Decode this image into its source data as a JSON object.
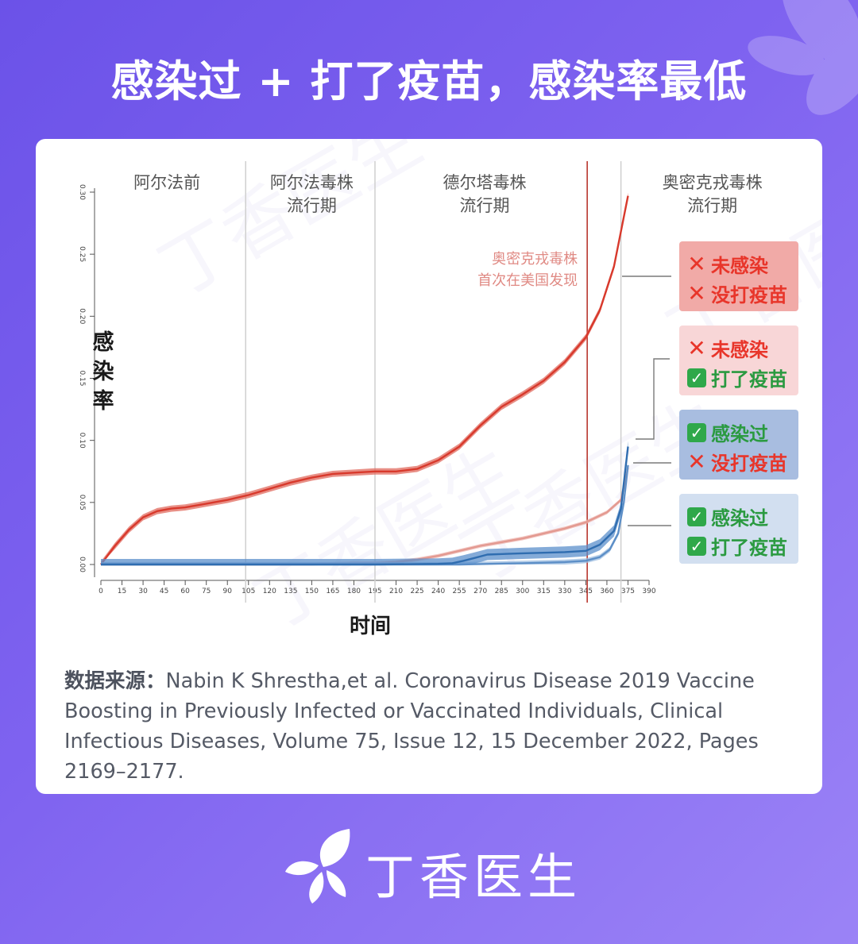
{
  "page_title": "感染过 + 打了疫苗，感染率最低",
  "chart_data": {
    "type": "line",
    "ylabel": "感染率",
    "xlabel": "时间",
    "xlim": [
      0,
      390
    ],
    "ylim": [
      0,
      0.3
    ],
    "x_ticks": [
      0,
      15,
      30,
      45,
      60,
      75,
      90,
      105,
      120,
      135,
      150,
      165,
      180,
      195,
      210,
      225,
      240,
      255,
      270,
      285,
      300,
      315,
      330,
      345,
      360,
      375,
      390
    ],
    "y_ticks": [
      {
        "value": 0.0,
        "label": "0.00"
      },
      {
        "value": 0.05,
        "label": "0.05"
      },
      {
        "value": 0.1,
        "label": "0.10"
      },
      {
        "value": 0.15,
        "label": "0.15"
      },
      {
        "value": 0.2,
        "label": "0.20"
      },
      {
        "value": 0.25,
        "label": "0.25"
      },
      {
        "value": 0.3,
        "label": "0.30"
      }
    ],
    "periods": [
      {
        "lines": [
          "阿尔法前"
        ],
        "center": 47
      },
      {
        "lines": [
          "阿尔法毒株",
          "流行期"
        ],
        "center": 150
      },
      {
        "lines": [
          "德尔塔毒株",
          "流行期"
        ],
        "center": 273
      },
      {
        "lines": [
          "奥密克戎毒株",
          "流行期"
        ],
        "center": 435
      }
    ],
    "period_boundaries": [
      103,
      195,
      370
    ],
    "marker_line": {
      "x": 346,
      "label_lines": [
        "奥密克戎毒株",
        "首次在美国发现"
      ],
      "color": "#b9372e"
    },
    "series": [
      {
        "key": "uninfected_unvaccinated",
        "color": "#d8392c",
        "band_color": "#e06a5e",
        "band": 0.0025,
        "x": [
          0,
          10,
          20,
          30,
          40,
          50,
          60,
          75,
          90,
          105,
          120,
          135,
          150,
          165,
          180,
          195,
          210,
          225,
          240,
          255,
          270,
          285,
          300,
          315,
          330,
          345,
          355,
          365,
          375
        ],
        "values": [
          0.0,
          0.015,
          0.028,
          0.038,
          0.043,
          0.045,
          0.046,
          0.049,
          0.052,
          0.056,
          0.061,
          0.066,
          0.07,
          0.073,
          0.074,
          0.075,
          0.075,
          0.077,
          0.084,
          0.095,
          0.112,
          0.127,
          0.137,
          0.148,
          0.163,
          0.183,
          0.205,
          0.24,
          0.297
        ]
      },
      {
        "key": "uninfected_vaccinated",
        "color": "#e39990",
        "band_color": "#eeb6b0",
        "band": 0.0015,
        "x": [
          0,
          100,
          150,
          180,
          195,
          210,
          225,
          240,
          255,
          270,
          285,
          300,
          315,
          330,
          345,
          360,
          370,
          375
        ],
        "values": [
          0.0,
          0.0,
          0.0,
          0.001,
          0.001,
          0.002,
          0.004,
          0.007,
          0.011,
          0.015,
          0.018,
          0.021,
          0.025,
          0.029,
          0.034,
          0.042,
          0.052,
          0.078
        ]
      },
      {
        "key": "infected_unvaccinated",
        "color": "#2f6db0",
        "band_color": "#5b8fcb",
        "band": 0.0045,
        "x": [
          0,
          100,
          195,
          240,
          250,
          258,
          265,
          275,
          300,
          330,
          345,
          355,
          365,
          370,
          373,
          375
        ],
        "values": [
          0.0,
          0.0,
          0.0,
          0.0005,
          0.001,
          0.003,
          0.005,
          0.008,
          0.009,
          0.01,
          0.011,
          0.016,
          0.027,
          0.045,
          0.075,
          0.095
        ]
      },
      {
        "key": "infected_vaccinated",
        "color": "#5d8fc7",
        "band_color": "#9bbce0",
        "band": 0.002,
        "x": [
          0,
          150,
          255,
          300,
          330,
          345,
          355,
          362,
          368,
          372,
          375
        ],
        "values": [
          0.0,
          0.0,
          0.0,
          0.001,
          0.002,
          0.003,
          0.006,
          0.012,
          0.025,
          0.05,
          0.08
        ]
      }
    ]
  },
  "legend": [
    {
      "key": "uninfected_unvaccinated",
      "bg": "#f1aaa7",
      "lines": [
        {
          "mark": "x",
          "text": "未感染",
          "color": "#e8352a"
        },
        {
          "mark": "x",
          "text": "没打疫苗",
          "color": "#e8352a"
        }
      ]
    },
    {
      "key": "uninfected_vaccinated",
      "bg": "#f8d6d7",
      "lines": [
        {
          "mark": "x",
          "text": "未感染",
          "color": "#e8352a"
        },
        {
          "mark": "check",
          "text": "打了疫苗",
          "color": "#2a9a40"
        }
      ]
    },
    {
      "key": "infected_unvaccinated",
      "bg": "#a8bde0",
      "lines": [
        {
          "mark": "check",
          "text": "感染过",
          "color": "#2a9a40"
        },
        {
          "mark": "x",
          "text": "没打疫苗",
          "color": "#e8352a"
        }
      ]
    },
    {
      "key": "infected_vaccinated",
      "bg": "#d2dff0",
      "lines": [
        {
          "mark": "check",
          "text": "感染过",
          "color": "#2a9a40"
        },
        {
          "mark": "check",
          "text": "打了疫苗",
          "color": "#2a9a40"
        }
      ]
    }
  ],
  "source": {
    "label": "数据来源：",
    "text": "Nabin K Shrestha,et al. Coronavirus Disease 2019 Vaccine Boosting in Previously Infected or Vaccinated Individuals, Clinical Infectious Diseases, Volume 75, Issue 12, 15 December 2022, Pages 2169–2177."
  },
  "brand": {
    "name": "丁香医生",
    "logo_icon": "lilac-flower-icon"
  },
  "marks": {
    "x_icon": "✕",
    "check_icon": "✓"
  }
}
